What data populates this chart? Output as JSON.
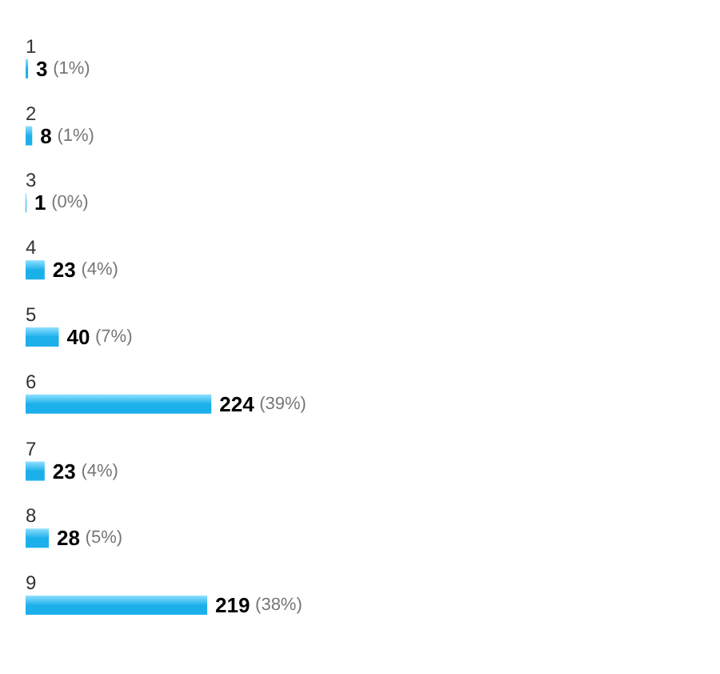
{
  "chart_data": {
    "type": "bar",
    "orientation": "horizontal",
    "categories": [
      "1",
      "2",
      "3",
      "4",
      "5",
      "6",
      "7",
      "8",
      "9"
    ],
    "values": [
      3,
      8,
      1,
      23,
      40,
      224,
      23,
      28,
      219
    ],
    "value_labels": [
      "3 (1%)",
      "8 (1%)",
      "1 (0%)",
      "23 (4%)",
      "40 (7%)",
      "224 (39%)",
      "23 (4%)",
      "28 (5%)",
      "219 (38%)"
    ],
    "color": "#1cb0ea"
  }
}
